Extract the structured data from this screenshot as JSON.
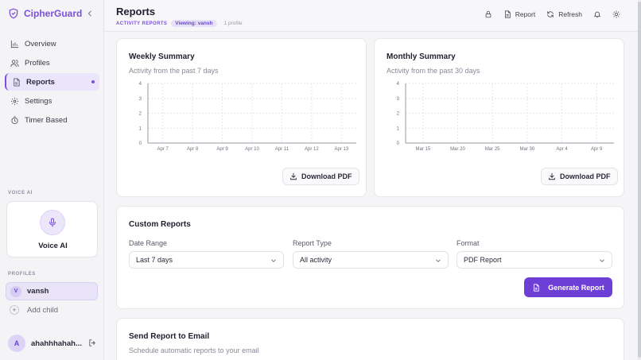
{
  "brand": {
    "name": "CipherGuard",
    "accent": "#7b4fe0"
  },
  "sidebar": {
    "items": [
      {
        "label": "Overview",
        "icon": "bar-chart-icon"
      },
      {
        "label": "Profiles",
        "icon": "users-icon"
      },
      {
        "label": "Reports",
        "icon": "document-icon",
        "active": true
      },
      {
        "label": "Settings",
        "icon": "gear-icon"
      },
      {
        "label": "Timer Based",
        "icon": "timer-icon"
      }
    ],
    "voice_section_label": "VOICE AI",
    "voice_card_label": "Voice AI",
    "profiles_section_label": "PROFILES",
    "profile": {
      "initial": "V",
      "name": "vansh"
    },
    "add_child_label": "Add child",
    "user": {
      "initial": "A",
      "name": "ahahhhahah..."
    }
  },
  "header": {
    "title": "Reports",
    "section": "ACTIVITY REPORTS",
    "viewing_badge": "Viewing: vansh",
    "profile_count": "1 profile",
    "report_label": "Report",
    "refresh_label": "Refresh"
  },
  "weekly": {
    "title": "Weekly Summary",
    "subtitle": "Activity from the past 7 days",
    "download_label": "Download PDF",
    "chart_data": {
      "type": "line",
      "categories": [
        "Apr 7",
        "Apr 8",
        "Apr 9",
        "Apr 10",
        "Apr 11",
        "Apr 12",
        "Apr 13"
      ],
      "yticks": [
        0,
        1,
        2,
        3,
        4
      ],
      "ylim": [
        0,
        4
      ],
      "grid": true,
      "series": []
    }
  },
  "monthly": {
    "title": "Monthly Summary",
    "subtitle": "Activity from the past 30 days",
    "download_label": "Download PDF",
    "chart_data": {
      "type": "line",
      "categories": [
        "Mar 15",
        "Mar 20",
        "Mar 25",
        "Mar 30",
        "Apr 4",
        "Apr 9"
      ],
      "yticks": [
        0,
        1,
        2,
        3,
        4
      ],
      "ylim": [
        0,
        4
      ],
      "grid": true,
      "series": []
    }
  },
  "custom": {
    "title": "Custom Reports",
    "date_range_label": "Date Range",
    "date_range_value": "Last 7 days",
    "report_type_label": "Report Type",
    "report_type_value": "All activity",
    "format_label": "Format",
    "format_value": "PDF Report",
    "generate_label": "Generate Report"
  },
  "email": {
    "title": "Send Report to Email",
    "subtitle": "Schedule automatic reports to your email"
  }
}
